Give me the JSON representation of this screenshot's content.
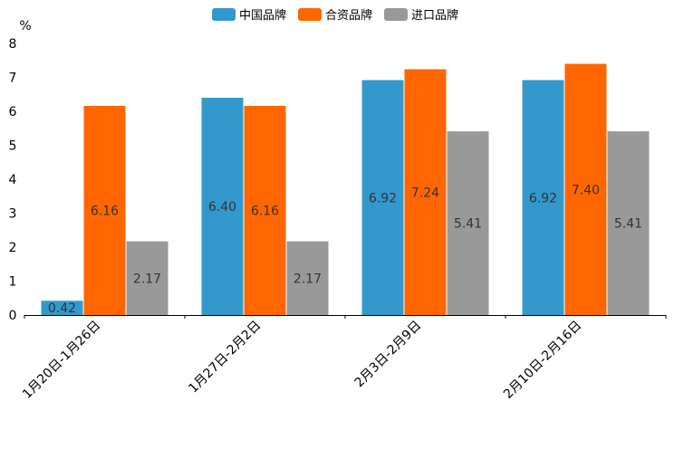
{
  "chart_data": {
    "type": "bar",
    "title": "",
    "xlabel": "",
    "ylabel": "%",
    "ylim": [
      0,
      8
    ],
    "yticks": [
      0,
      1,
      2,
      3,
      4,
      5,
      6,
      7,
      8
    ],
    "legend_position": "top-center",
    "grid": false,
    "categories": [
      "1月20日-1月26日",
      "1月27日-2月2日",
      "2月3日-2月9日",
      "2月10日-2月16日"
    ],
    "series": [
      {
        "name": "中国品牌",
        "color": "#3399cc",
        "values": [
          0.42,
          6.4,
          6.92,
          6.92
        ]
      },
      {
        "name": "合资品牌",
        "color": "#ff6600",
        "values": [
          6.16,
          6.16,
          7.24,
          7.4
        ]
      },
      {
        "name": "进口品牌",
        "color": "#999999",
        "values": [
          2.17,
          2.17,
          5.41,
          5.41
        ]
      }
    ]
  }
}
